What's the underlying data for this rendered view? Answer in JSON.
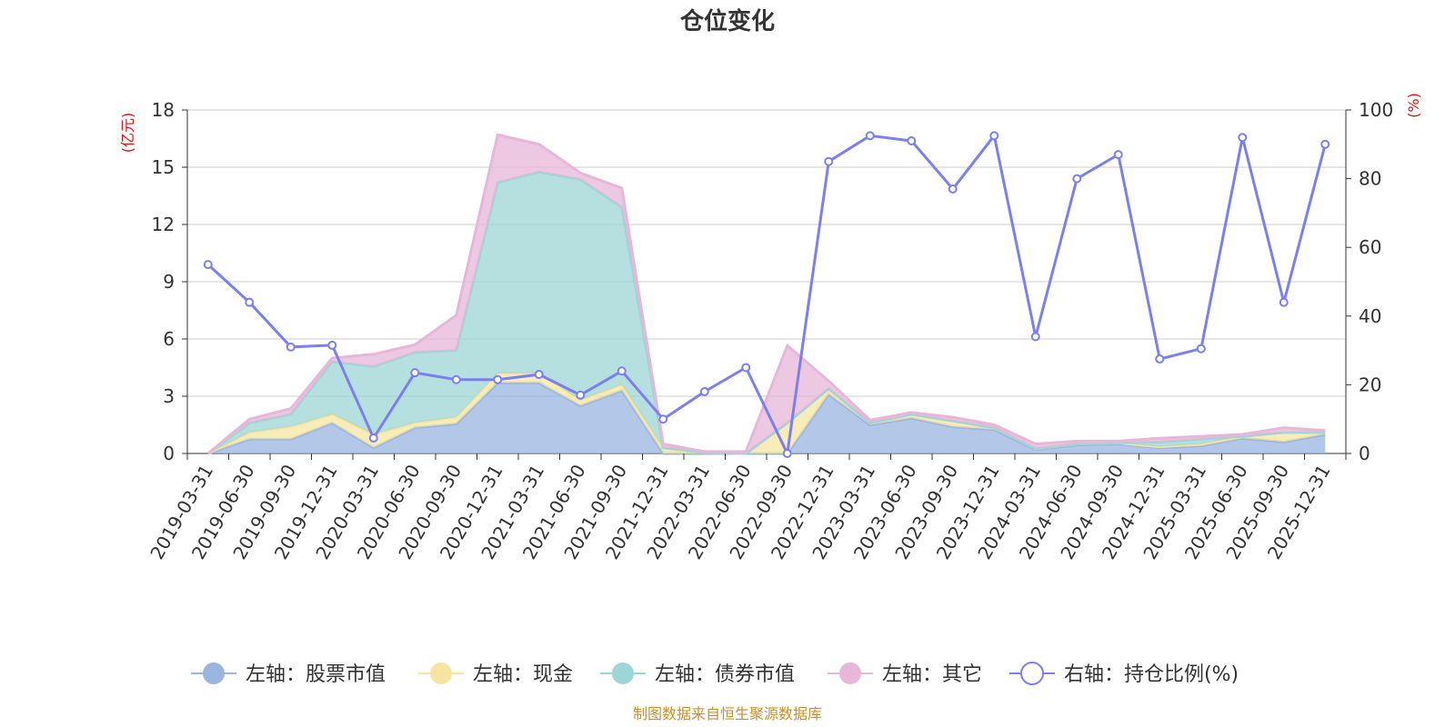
{
  "chart_data": {
    "type": "area",
    "title": "仓位变化",
    "source": "制图数据来自恒生聚源数据库",
    "left_axis": {
      "unit": "(亿元)",
      "range": [
        0,
        18
      ],
      "ticks": [
        0,
        3,
        6,
        9,
        12,
        15,
        18
      ]
    },
    "right_axis": {
      "unit": "(%)",
      "range": [
        0,
        100
      ],
      "ticks": [
        0,
        20,
        40,
        60,
        80,
        100
      ]
    },
    "categories": [
      "2019-03-31",
      "2019-06-30",
      "2019-09-30",
      "2019-12-31",
      "2020-03-31",
      "2020-06-30",
      "2020-09-30",
      "2020-12-31",
      "2021-03-31",
      "2021-06-30",
      "2021-09-30",
      "2021-12-31",
      "2022-03-31",
      "2022-06-30",
      "2022-09-30",
      "2022-12-31",
      "2023-03-31",
      "2023-06-30",
      "2023-09-30",
      "2023-12-31",
      "2024-03-31",
      "2024-06-30",
      "2024-09-30",
      "2024-12-31",
      "2025-03-31",
      "2025-06-30",
      "2025-09-30",
      "2025-12-31"
    ],
    "series": [
      {
        "name": "左轴：股票市值",
        "axis": "left",
        "kind": "stacked-area",
        "color": "#9ab5e0",
        "values": [
          0,
          0.75,
          0.75,
          1.6,
          0.3,
          1.35,
          1.55,
          3.7,
          3.7,
          2.5,
          3.3,
          0,
          0,
          0,
          0,
          3.1,
          1.5,
          1.85,
          1.4,
          1.25,
          0.2,
          0.45,
          0.5,
          0.3,
          0.4,
          0.8,
          0.6,
          1.0
        ]
      },
      {
        "name": "左轴：现金",
        "axis": "left",
        "kind": "stacked-area",
        "color": "#f6e5a0",
        "values": [
          0,
          0.35,
          0.65,
          0.45,
          0.7,
          0.25,
          0.35,
          0.5,
          0.5,
          0.3,
          0.3,
          0.3,
          0.05,
          0,
          1.6,
          0.3,
          0.1,
          0.2,
          0.3,
          0.1,
          0.05,
          0.05,
          0.05,
          0.05,
          0.1,
          0.1,
          0.5,
          0.1
        ]
      },
      {
        "name": "左轴：债券市值",
        "axis": "left",
        "kind": "stacked-area",
        "color": "#9dd6d6",
        "values": [
          0,
          0.5,
          0.65,
          2.75,
          3.55,
          3.7,
          3.5,
          10.0,
          10.55,
          11.55,
          9.3,
          0,
          0,
          0,
          0,
          0,
          0,
          0,
          0,
          0,
          0,
          0,
          0,
          0.25,
          0.25,
          0,
          0,
          0
        ]
      },
      {
        "name": "左轴：其它",
        "axis": "left",
        "kind": "stacked-area",
        "color": "#e7b6d8",
        "values": [
          0,
          0.2,
          0.3,
          0.2,
          0.65,
          0.4,
          1.85,
          2.5,
          1.45,
          0.35,
          1.0,
          0.2,
          0.05,
          0.1,
          4.05,
          0.4,
          0.15,
          0.1,
          0.2,
          0.15,
          0.25,
          0.15,
          0.1,
          0.2,
          0.15,
          0.1,
          0.25,
          0.1
        ]
      },
      {
        "name": "右轴：持仓比例(%)",
        "axis": "right",
        "kind": "line",
        "color": "#7b7ff0",
        "values": [
          55,
          44,
          31,
          31.5,
          4.5,
          23.5,
          21.5,
          21.5,
          23,
          17,
          24,
          10,
          18,
          25,
          0,
          85,
          92.5,
          91,
          77,
          92.5,
          34,
          80,
          87,
          27.5,
          30.5,
          92,
          44,
          90
        ]
      }
    ],
    "legend_position": "bottom",
    "grid": true
  }
}
